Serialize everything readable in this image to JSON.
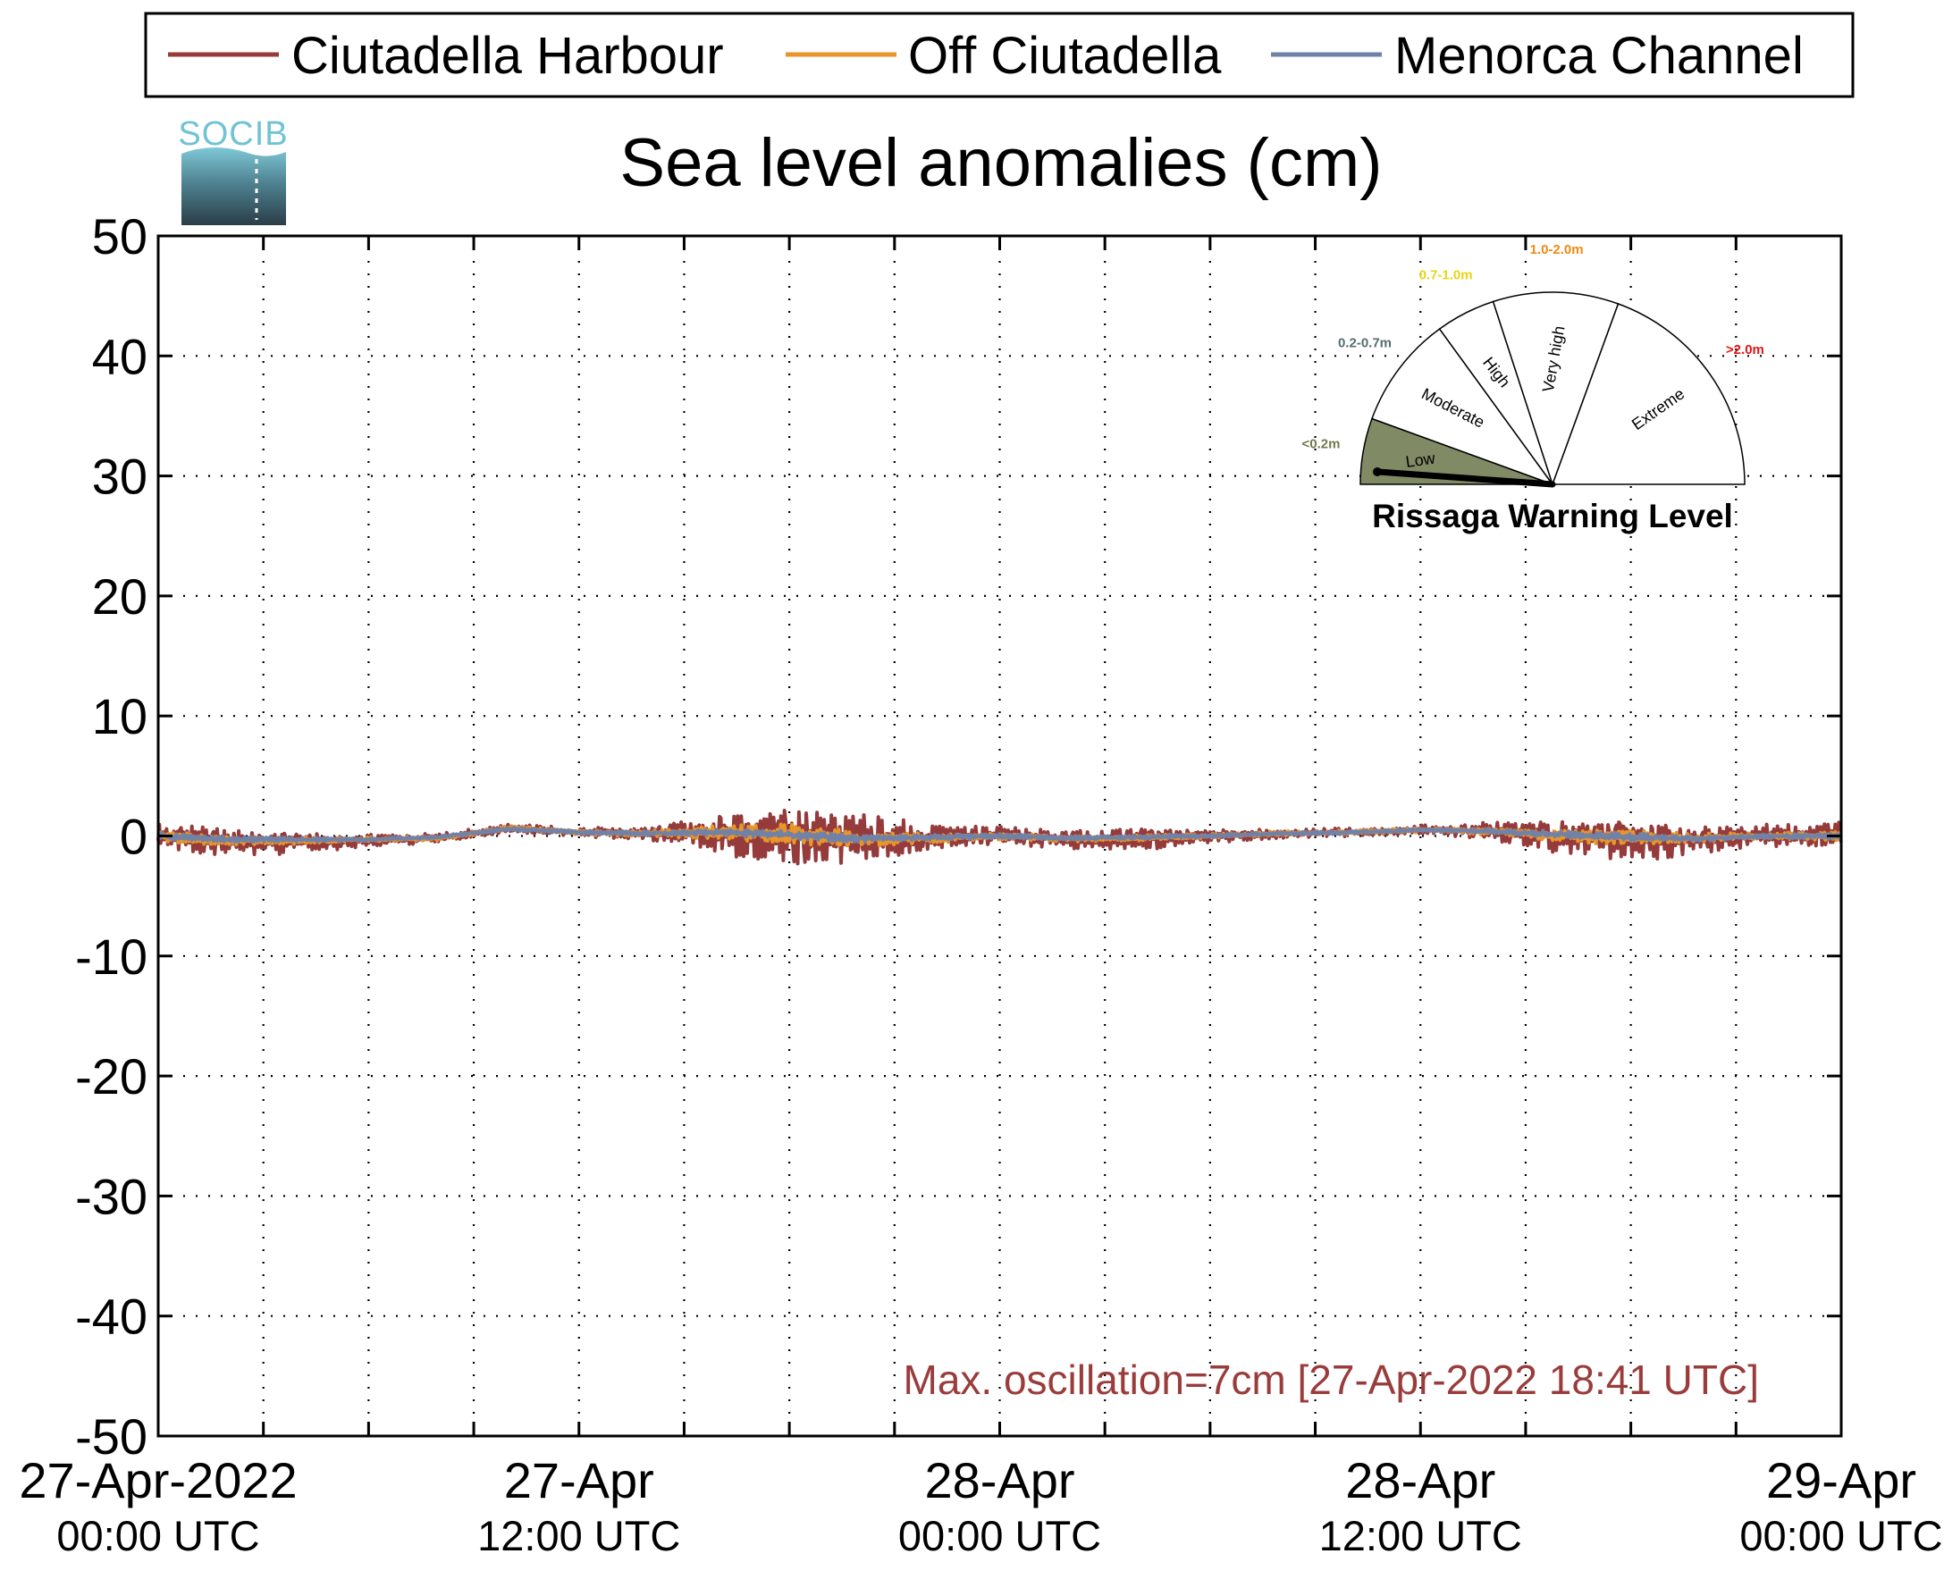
{
  "legend": {
    "entries": [
      {
        "label": "Ciutadella Harbour",
        "color": "#953b3b"
      },
      {
        "label": "Off Ciutadella",
        "color": "#e8952a"
      },
      {
        "label": "Menorca Channel",
        "color": "#7282a6"
      }
    ]
  },
  "logo": {
    "text": "SOCIB"
  },
  "annotation": {
    "text": "Max. oscillation=7cm [27-Apr-2022 18:41 UTC]",
    "color": "#9a3c3c"
  },
  "gauge": {
    "title": "Rissaga Warning Level",
    "current_level": "Low",
    "sectors": [
      {
        "name": "Low",
        "range": "<0.2m",
        "range_color": "#6f7a4c",
        "fill": "#808a65"
      },
      {
        "name": "Moderate",
        "range": "0.2-0.7m",
        "range_color": "#556e6e",
        "fill": "#ffffff"
      },
      {
        "name": "High",
        "range": "0.7-1.0m",
        "range_color": "#e8d414",
        "fill": "#ffffff"
      },
      {
        "name": "Very high",
        "range": "1.0-2.0m",
        "range_color": "#f08a12",
        "fill": "#ffffff"
      },
      {
        "name": "Extreme",
        "range": ">2.0m",
        "range_color": "#e41313",
        "fill": "#ffffff"
      }
    ]
  },
  "chart_data": {
    "type": "line",
    "title": "Sea level anomalies (cm)",
    "xlabel": "",
    "ylabel": "",
    "ylim": [
      -50,
      50
    ],
    "yticks": [
      50,
      40,
      30,
      20,
      10,
      0,
      -10,
      -20,
      -30,
      -40,
      -50
    ],
    "xlim_hours": [
      0,
      48
    ],
    "grid": true,
    "legend_position": "top",
    "x_tick_labels": [
      {
        "hour": 0,
        "line1": "27-Apr-2022",
        "line2": "00:00 UTC"
      },
      {
        "hour": 12,
        "line1": "27-Apr",
        "line2": "12:00 UTC"
      },
      {
        "hour": 24,
        "line1": "28-Apr",
        "line2": "00:00 UTC"
      },
      {
        "hour": 36,
        "line1": "28-Apr",
        "line2": "12:00 UTC"
      },
      {
        "hour": 48,
        "line1": "29-Apr",
        "line2": "00:00 UTC"
      }
    ],
    "x_minor_ticks_hours": [
      3,
      6,
      9,
      15,
      18,
      21,
      27,
      30,
      33,
      39,
      42,
      45
    ],
    "series": [
      {
        "name": "Ciutadella Harbour",
        "color": "#953b3b",
        "x": [
          "27-Apr 00:00",
          "27-Apr 02:00",
          "27-Apr 04:00",
          "27-Apr 06:00",
          "27-Apr 08:00",
          "27-Apr 10:00",
          "27-Apr 12:00",
          "27-Apr 14:00",
          "27-Apr 16:00",
          "27-Apr 18:00",
          "27-Apr 20:00",
          "27-Apr 22:00",
          "28-Apr 00:00",
          "28-Apr 02:00",
          "28-Apr 04:00",
          "28-Apr 06:00",
          "28-Apr 08:00",
          "28-Apr 10:00",
          "28-Apr 12:00",
          "28-Apr 14:00",
          "28-Apr 16:00",
          "28-Apr 18:00",
          "28-Apr 20:00",
          "28-Apr 22:00",
          "29-Apr 00:00"
        ],
        "y_mean": [
          0,
          -0.5,
          -0.5,
          -0.4,
          -0.2,
          0.6,
          0.3,
          0.2,
          0.3,
          0,
          -0.3,
          -0.2,
          0,
          -0.3,
          -0.2,
          0,
          0.2,
          0.3,
          0.5,
          0.4,
          0,
          -0.2,
          -0.3,
          0,
          0
        ],
        "envelope": [
          1.4,
          1.2,
          1.0,
          0.6,
          0.4,
          0.4,
          0.4,
          0.6,
          1.8,
          2.6,
          2.2,
          1.2,
          0.8,
          0.9,
          1.0,
          0.6,
          0.4,
          0.4,
          0.4,
          0.8,
          1.5,
          2.0,
          1.2,
          1.0,
          1.2
        ]
      },
      {
        "name": "Off Ciutadella",
        "color": "#e8952a",
        "x": [
          "27-Apr 00:00",
          "27-Apr 02:00",
          "27-Apr 04:00",
          "27-Apr 06:00",
          "27-Apr 08:00",
          "27-Apr 10:00",
          "27-Apr 12:00",
          "27-Apr 14:00",
          "27-Apr 16:00",
          "27-Apr 18:00",
          "27-Apr 20:00",
          "27-Apr 22:00",
          "28-Apr 00:00",
          "28-Apr 02:00",
          "28-Apr 04:00",
          "28-Apr 06:00",
          "28-Apr 08:00",
          "28-Apr 10:00",
          "28-Apr 12:00",
          "28-Apr 14:00",
          "28-Apr 16:00",
          "28-Apr 18:00",
          "28-Apr 20:00",
          "28-Apr 22:00",
          "29-Apr 00:00"
        ],
        "y_mean": [
          0,
          -0.4,
          -0.4,
          -0.3,
          -0.2,
          0.7,
          0.3,
          0.2,
          0.3,
          0,
          -0.3,
          -0.2,
          0,
          -0.2,
          -0.2,
          0,
          0.2,
          0.3,
          0.5,
          0.4,
          0,
          -0.2,
          -0.2,
          0,
          0
        ],
        "envelope": [
          0.5,
          0.4,
          0.3,
          0.2,
          0.2,
          0.2,
          0.2,
          0.3,
          0.6,
          1.0,
          0.8,
          0.4,
          0.3,
          0.3,
          0.3,
          0.2,
          0.2,
          0.2,
          0.2,
          0.3,
          0.5,
          0.7,
          0.4,
          0.3,
          0.4
        ]
      },
      {
        "name": "Menorca Channel",
        "color": "#7282a6",
        "x": [
          "27-Apr 00:00",
          "27-Apr 02:00",
          "27-Apr 04:00",
          "27-Apr 06:00",
          "27-Apr 08:00",
          "27-Apr 10:00",
          "27-Apr 12:00",
          "27-Apr 14:00",
          "27-Apr 16:00",
          "27-Apr 18:00",
          "27-Apr 20:00",
          "27-Apr 22:00",
          "28-Apr 00:00",
          "28-Apr 02:00",
          "28-Apr 04:00",
          "28-Apr 06:00",
          "28-Apr 08:00",
          "28-Apr 10:00",
          "28-Apr 12:00",
          "28-Apr 14:00",
          "28-Apr 16:00",
          "28-Apr 18:00",
          "28-Apr 20:00",
          "28-Apr 22:00",
          "29-Apr 00:00"
        ],
        "y_mean": [
          0,
          -0.3,
          -0.3,
          -0.3,
          -0.1,
          0.6,
          0.3,
          0.2,
          0.3,
          0.1,
          -0.2,
          -0.1,
          0,
          -0.2,
          -0.1,
          0,
          0.2,
          0.3,
          0.5,
          0.4,
          0.1,
          -0.1,
          -0.2,
          0,
          0
        ],
        "envelope": [
          0.3,
          0.25,
          0.2,
          0.15,
          0.15,
          0.15,
          0.15,
          0.2,
          0.3,
          0.4,
          0.35,
          0.25,
          0.2,
          0.2,
          0.2,
          0.15,
          0.15,
          0.15,
          0.15,
          0.2,
          0.3,
          0.35,
          0.25,
          0.2,
          0.25
        ]
      }
    ]
  }
}
